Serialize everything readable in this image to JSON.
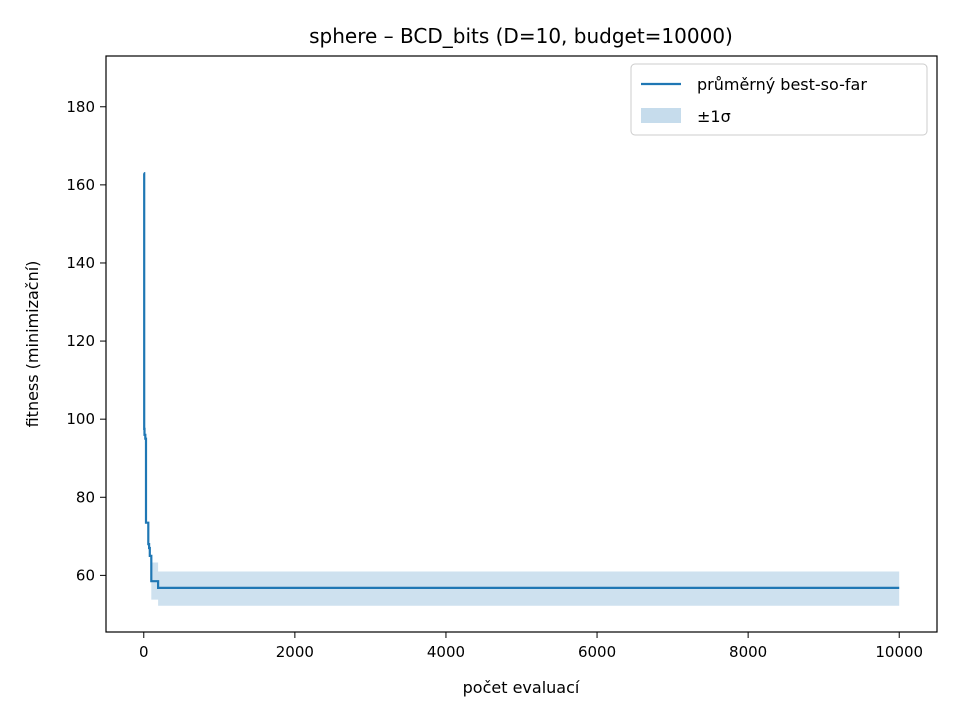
{
  "chart_data": {
    "type": "line",
    "title": "sphere – BCD_bits (D=10, budget=10000)",
    "xlabel": "počet evaluací",
    "ylabel": "fitness (minimizační)",
    "xlim": [
      -500,
      10500
    ],
    "ylim": [
      45.5,
      193
    ],
    "xticks": [
      0,
      2000,
      4000,
      6000,
      8000,
      10000
    ],
    "yticks": [
      60,
      80,
      100,
      120,
      140,
      160,
      180
    ],
    "grid": false,
    "legend": {
      "placement": "top-right",
      "entries": [
        "průměrný best-so-far",
        "±1σ"
      ]
    },
    "colors": {
      "line": "#1f77b4",
      "band": "#c6dcec"
    },
    "series": [
      {
        "name": "průměrný best-so-far",
        "kind": "step-line",
        "x": [
          0,
          5,
          10,
          20,
          30,
          40,
          60,
          70,
          80,
          100,
          180,
          190,
          10000
        ],
        "y": [
          163,
          97.5,
          96,
          95,
          73.5,
          73.5,
          68,
          67,
          65,
          58.5,
          58.5,
          56.8,
          56.8
        ]
      },
      {
        "name": "±1σ",
        "kind": "band",
        "x": [
          100,
          180,
          190,
          10000
        ],
        "lower": [
          53.8,
          53.8,
          52.2,
          52.2
        ],
        "upper": [
          63.3,
          63.3,
          61.0,
          61.0
        ]
      }
    ]
  }
}
